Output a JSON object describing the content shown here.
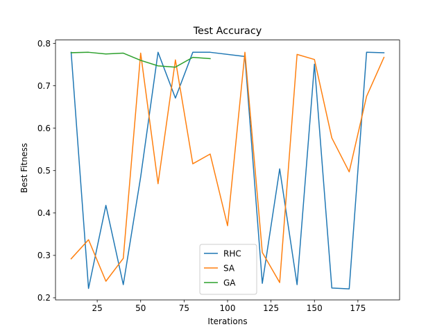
{
  "chart_data": {
    "type": "line",
    "title": "Test Accuracy",
    "xlabel": "Iterations",
    "ylabel": "Best Fitness",
    "xlim": [
      1,
      199
    ],
    "ylim": [
      0.195,
      0.808
    ],
    "xticks": [
      25,
      50,
      75,
      100,
      125,
      150,
      175
    ],
    "yticks": [
      0.2,
      0.3,
      0.4,
      0.5,
      0.6,
      0.7,
      0.8
    ],
    "xtick_labels": [
      "25",
      "50",
      "75",
      "100",
      "125",
      "150",
      "175"
    ],
    "ytick_labels": [
      "0.2",
      "0.3",
      "0.4",
      "0.5",
      "0.6",
      "0.7",
      "0.8"
    ],
    "grid": false,
    "legend_position": "bottom-center",
    "series": [
      {
        "name": "RHC",
        "color": "#1f77b4",
        "x": [
          10,
          20,
          30,
          40,
          50,
          60,
          70,
          80,
          90,
          110,
          120,
          130,
          140,
          150,
          160,
          170,
          180,
          190
        ],
        "y": [
          0.779,
          0.222,
          0.418,
          0.231,
          0.485,
          0.779,
          0.671,
          0.779,
          0.779,
          0.769,
          0.234,
          0.504,
          0.231,
          0.751,
          0.223,
          0.221,
          0.779,
          0.778
        ]
      },
      {
        "name": "SA",
        "color": "#ff7f0e",
        "x": [
          10,
          20,
          30,
          40,
          50,
          60,
          70,
          80,
          90,
          100,
          110,
          120,
          130,
          140,
          150,
          160,
          170,
          180,
          190
        ],
        "y": [
          0.292,
          0.337,
          0.239,
          0.293,
          0.777,
          0.469,
          0.761,
          0.516,
          0.539,
          0.37,
          0.779,
          0.307,
          0.236,
          0.774,
          0.762,
          0.577,
          0.497,
          0.675,
          0.767
        ]
      },
      {
        "name": "GA",
        "color": "#2ca02c",
        "x": [
          10,
          20,
          30,
          40,
          50,
          60,
          70,
          80,
          90
        ],
        "y": [
          0.778,
          0.779,
          0.775,
          0.777,
          0.76,
          0.747,
          0.744,
          0.767,
          0.764
        ]
      }
    ]
  }
}
